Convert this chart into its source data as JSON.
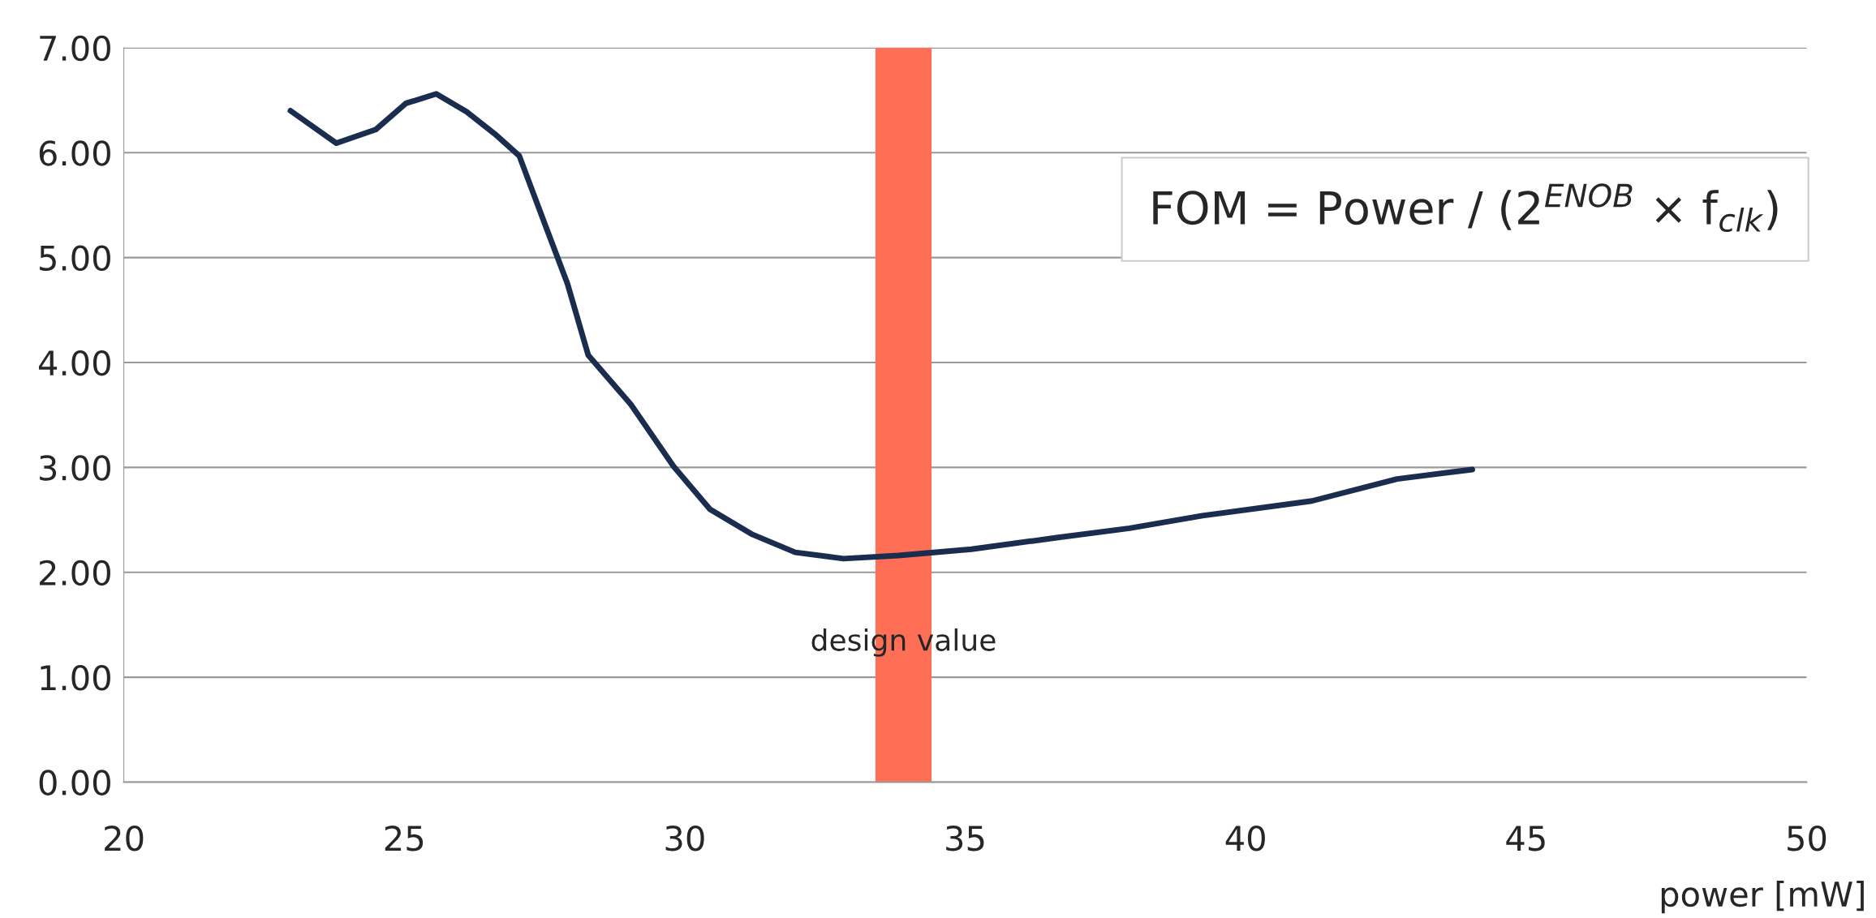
{
  "chart_data": {
    "type": "line",
    "xlabel": "power [mW]",
    "x": [
      22.97,
      23.79,
      24.49,
      25.03,
      25.57,
      26.11,
      26.61,
      27.05,
      27.52,
      27.91,
      28.28,
      29.04,
      29.8,
      30.45,
      31.21,
      31.97,
      32.83,
      33.81,
      35.11,
      36.63,
      37.93,
      39.23,
      41.18,
      42.7,
      44.04
    ],
    "series": [
      {
        "color": "#1b2d4f",
        "values": [
          6.4,
          6.09,
          6.22,
          6.47,
          6.56,
          6.39,
          6.18,
          5.97,
          5.3,
          4.75,
          4.07,
          3.6,
          3.01,
          2.6,
          2.36,
          2.19,
          2.13,
          2.16,
          2.22,
          2.33,
          2.42,
          2.54,
          2.68,
          2.89,
          2.98
        ]
      }
    ],
    "xlim": [
      20,
      50
    ],
    "xticks": [
      20,
      25,
      30,
      35,
      40,
      45,
      50
    ],
    "ylim": [
      0,
      7
    ],
    "yticks": [
      {
        "value": 0,
        "label": "0.00"
      },
      {
        "value": 1,
        "label": "1.00"
      },
      {
        "value": 2,
        "label": "2.00"
      },
      {
        "value": 3,
        "label": "3.00"
      },
      {
        "value": 4,
        "label": "4.00"
      },
      {
        "value": 5,
        "label": "5.00"
      },
      {
        "value": 6,
        "label": "6.00"
      },
      {
        "value": 7,
        "label": "7.00"
      }
    ],
    "bands": [
      {
        "axis": "x",
        "from": 33.4,
        "to": 34.4,
        "label": "design value",
        "color": "#ff6f55"
      }
    ],
    "annotations": [
      "FOM = Power / (2$^{ENOB}$ × f$_{clk}$)"
    ],
    "grid": "y",
    "marker": "none",
    "line_style": "solid",
    "legend": false
  }
}
